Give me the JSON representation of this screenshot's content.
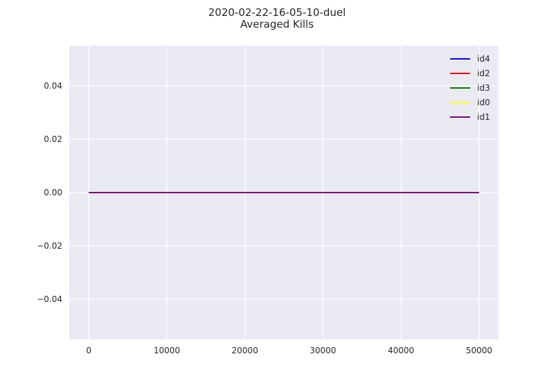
{
  "chart_data": {
    "type": "line",
    "title": "2020-02-22-16-05-10-duel",
    "subtitle": "Averaged Kills",
    "xlabel": "",
    "ylabel": "",
    "xlim": [
      -2500,
      52500
    ],
    "ylim": [
      -0.055,
      0.055
    ],
    "x_ticks": [
      0,
      10000,
      20000,
      30000,
      40000,
      50000
    ],
    "y_ticks": [
      -0.04,
      -0.02,
      0.0,
      0.02,
      0.04
    ],
    "x_tick_labels": [
      "0",
      "10000",
      "20000",
      "30000",
      "40000",
      "50000"
    ],
    "y_tick_labels": [
      "−0.04",
      "−0.02",
      "0.00",
      "0.02",
      "0.04"
    ],
    "grid": true,
    "legend_position": "top-right",
    "background": "#eaeaf2",
    "grid_color": "#ffffff",
    "series": [
      {
        "name": "id4",
        "color": "#0000ff",
        "x": [
          0,
          50000
        ],
        "y": [
          0,
          0
        ]
      },
      {
        "name": "id2",
        "color": "#ff0000",
        "x": [
          0,
          50000
        ],
        "y": [
          0,
          0
        ]
      },
      {
        "name": "id3",
        "color": "#008000",
        "x": [
          0,
          50000
        ],
        "y": [
          0,
          0
        ]
      },
      {
        "name": "id0",
        "color": "#ffff00",
        "x": [
          0,
          50000
        ],
        "y": [
          0,
          0
        ]
      },
      {
        "name": "id1",
        "color": "#800080",
        "x": [
          0,
          50000
        ],
        "y": [
          0,
          0
        ]
      }
    ]
  }
}
